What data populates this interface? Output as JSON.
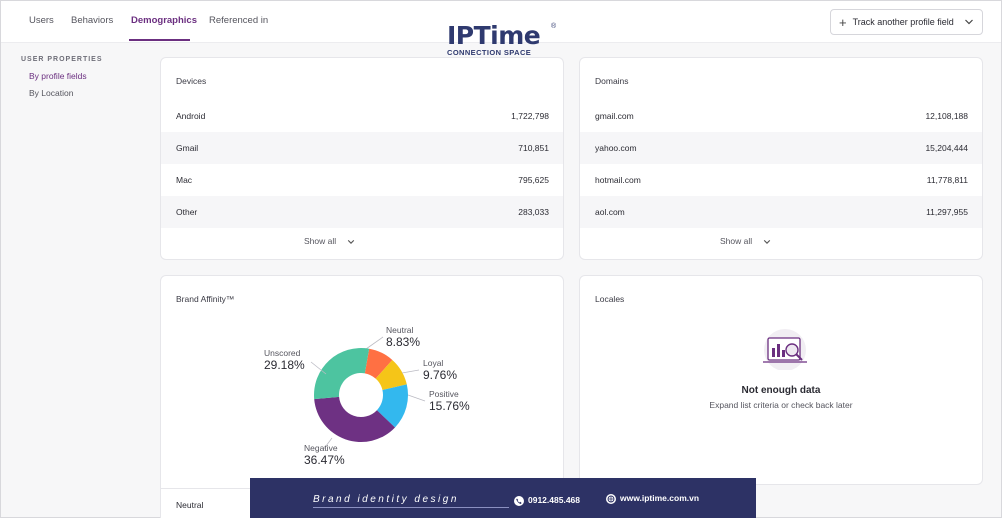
{
  "tabs": [
    {
      "label": "Users"
    },
    {
      "label": "Behaviors"
    },
    {
      "label": "Demographics"
    },
    {
      "label": "Referenced in"
    }
  ],
  "track_button": {
    "label": "Track another profile field"
  },
  "logo": {
    "text": "IPTime",
    "subtitle": "CONNECTION SPACE",
    "reg": "®"
  },
  "sidebar": {
    "title": "USER PROPERTIES",
    "items": [
      {
        "label": "By profile fields"
      },
      {
        "label": "By Location"
      }
    ]
  },
  "devices": {
    "title": "Devices",
    "rows": [
      {
        "label": "Android",
        "value": "1,722,798"
      },
      {
        "label": "Gmail",
        "value": "710,851"
      },
      {
        "label": "Mac",
        "value": "795,625"
      },
      {
        "label": "Other",
        "value": "283,033"
      }
    ],
    "show_all": "Show all"
  },
  "domains": {
    "title": "Domains",
    "rows": [
      {
        "label": "gmail.com",
        "value": "12,108,188"
      },
      {
        "label": "yahoo.com",
        "value": "15,204,444"
      },
      {
        "label": "hotmail.com",
        "value": "11,778,811"
      },
      {
        "label": "aol.com",
        "value": "11,297,955"
      }
    ],
    "show_all": "Show all"
  },
  "brand_affinity": {
    "title": "Brand Affinity™",
    "footer_row": "Neutral"
  },
  "chart_data": {
    "type": "pie",
    "title": "Brand Affinity™",
    "slices": [
      {
        "label": "Neutral",
        "value": 8.83,
        "display": "8.83%",
        "color": "#ff7043"
      },
      {
        "label": "Loyal",
        "value": 9.76,
        "display": "9.76%",
        "color": "#f5c518"
      },
      {
        "label": "Positive",
        "value": 15.76,
        "display": "15.76%",
        "color": "#33b8ee"
      },
      {
        "label": "Negative",
        "value": 36.47,
        "display": "36.47%",
        "color": "#6e3183"
      },
      {
        "label": "Unscored",
        "value": 29.18,
        "display": "29.18%",
        "color": "#4dc4a0"
      }
    ]
  },
  "locales": {
    "title": "Locales",
    "empty_title": "Not enough data",
    "empty_sub": "Expand list criteria or check back later"
  },
  "banner": {
    "text": "Brand identity design",
    "phone": "0912.485.468",
    "web": "www.iptime.com.vn"
  },
  "colors": {
    "accent": "#6b2f80",
    "banner": "#2d3265"
  }
}
